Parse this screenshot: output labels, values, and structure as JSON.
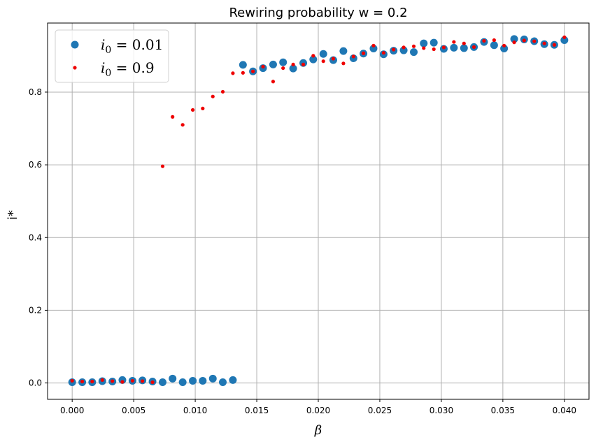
{
  "chart_data": {
    "type": "scatter",
    "title": "Rewiring probability w = 0.2",
    "xlabel": "β",
    "ylabel": "i*",
    "xlim": [
      -0.002,
      0.042
    ],
    "ylim": [
      -0.045,
      0.99
    ],
    "x_ticks": [
      0.0,
      0.005,
      0.01,
      0.015,
      0.02,
      0.025,
      0.03,
      0.035,
      0.04
    ],
    "x_tick_labels": [
      "0.000",
      "0.005",
      "0.010",
      "0.015",
      "0.020",
      "0.025",
      "0.030",
      "0.035",
      "0.040"
    ],
    "y_ticks": [
      0.0,
      0.2,
      0.4,
      0.6,
      0.8
    ],
    "y_tick_labels": [
      "0.0",
      "0.2",
      "0.4",
      "0.6",
      "0.8"
    ],
    "grid": true,
    "legend_position": "top-left",
    "series": [
      {
        "name": "i0 = 0.01",
        "legend_base": "i",
        "legend_sub": "0",
        "legend_rest": " = 0.01",
        "color": "#1f77b4",
        "marker": "large-dot",
        "x": [
          0.0,
          0.00082,
          0.00163,
          0.00245,
          0.00327,
          0.00408,
          0.0049,
          0.00571,
          0.00653,
          0.00735,
          0.00816,
          0.00898,
          0.0098,
          0.01061,
          0.01143,
          0.01224,
          0.01306,
          0.01388,
          0.01469,
          0.01551,
          0.01633,
          0.01714,
          0.01796,
          0.01878,
          0.01959,
          0.02041,
          0.02122,
          0.02204,
          0.02286,
          0.02367,
          0.02449,
          0.02531,
          0.02612,
          0.02694,
          0.02776,
          0.02857,
          0.02939,
          0.0302,
          0.03102,
          0.03184,
          0.03265,
          0.03347,
          0.03429,
          0.0351,
          0.03592,
          0.03673,
          0.03755,
          0.03837,
          0.03918,
          0.04
        ],
        "y": [
          0.002,
          0.002,
          0.002,
          0.005,
          0.004,
          0.008,
          0.006,
          0.007,
          0.004,
          0.002,
          0.012,
          0.002,
          0.006,
          0.006,
          0.012,
          0.002,
          0.008,
          0.875,
          0.857,
          0.866,
          0.876,
          0.882,
          0.865,
          0.88,
          0.89,
          0.905,
          0.888,
          0.913,
          0.893,
          0.906,
          0.92,
          0.904,
          0.914,
          0.915,
          0.91,
          0.934,
          0.936,
          0.919,
          0.922,
          0.921,
          0.924,
          0.938,
          0.929,
          0.92,
          0.946,
          0.945,
          0.94,
          0.932,
          0.93,
          0.943
        ]
      },
      {
        "name": "i0 = 0.9",
        "legend_base": "i",
        "legend_sub": "0",
        "legend_rest": " = 0.9",
        "color": "#ee0000",
        "marker": "small-dot",
        "x": [
          0.0,
          0.00082,
          0.00163,
          0.00245,
          0.00327,
          0.00408,
          0.0049,
          0.00571,
          0.00653,
          0.00735,
          0.00816,
          0.00898,
          0.0098,
          0.01061,
          0.01143,
          0.01224,
          0.01306,
          0.01388,
          0.01469,
          0.01551,
          0.01633,
          0.01714,
          0.01796,
          0.01878,
          0.01959,
          0.02041,
          0.02122,
          0.02204,
          0.02286,
          0.02367,
          0.02449,
          0.02531,
          0.02612,
          0.02694,
          0.02776,
          0.02857,
          0.02939,
          0.0302,
          0.03102,
          0.03184,
          0.03265,
          0.03347,
          0.03429,
          0.0351,
          0.03592,
          0.03673,
          0.03755,
          0.03837,
          0.03918,
          0.04
        ],
        "y": [
          0.006,
          0.004,
          0.004,
          0.008,
          0.005,
          0.003,
          0.006,
          0.005,
          0.002,
          0.596,
          0.732,
          0.71,
          0.751,
          0.755,
          0.788,
          0.801,
          0.852,
          0.853,
          0.857,
          0.87,
          0.829,
          0.866,
          0.876,
          0.876,
          0.9,
          0.885,
          0.892,
          0.879,
          0.898,
          0.907,
          0.928,
          0.908,
          0.917,
          0.923,
          0.926,
          0.921,
          0.918,
          0.923,
          0.938,
          0.934,
          0.924,
          0.941,
          0.943,
          0.928,
          0.937,
          0.942,
          0.94,
          0.934,
          0.93,
          0.951
        ]
      }
    ]
  }
}
